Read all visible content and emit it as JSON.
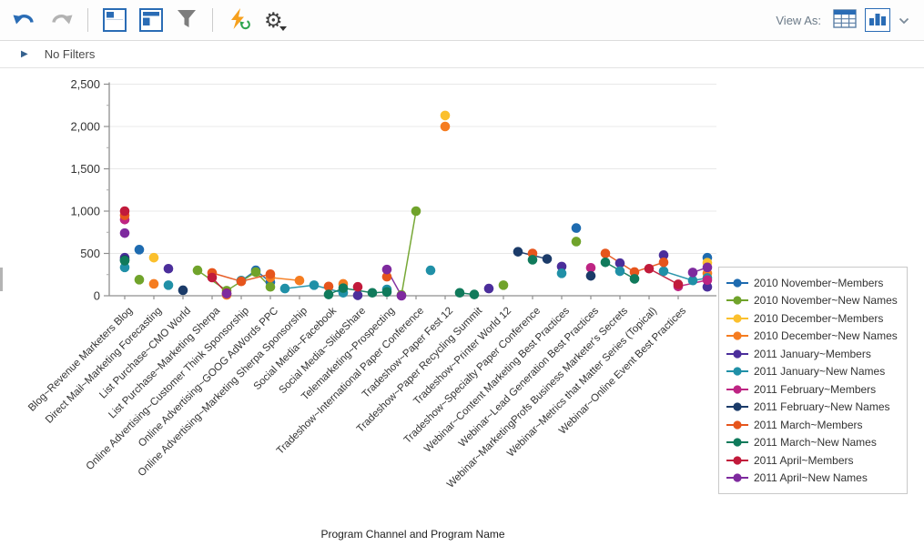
{
  "toolbar": {
    "view_as_label": "View As:",
    "gear_glyph": "⚙",
    "icons": {
      "undo": "undo-arrow",
      "redo": "redo-arrow",
      "layout_left": "panel-layout-left",
      "layout_top": "panel-layout-top",
      "filter": "funnel",
      "refresh": "lightning-refresh",
      "settings": "gear",
      "view_table": "table-grid",
      "view_chart": "bar-chart",
      "view_more": "chevron-down"
    }
  },
  "filter_bar": {
    "expander_glyph": "▶",
    "label": "No Filters"
  },
  "chart_data": {
    "type": "scatter",
    "title": "",
    "xlabel": "Program Channel and Program Name",
    "ylabel": "",
    "ylim": [
      0,
      2500
    ],
    "yticks": [
      0,
      500,
      1000,
      1500,
      2000,
      2500
    ],
    "ytick_labels": [
      "0",
      "500",
      "1,000",
      "1,500",
      "2,000",
      "2,500"
    ],
    "ytick_minor_step": 250,
    "grid": "horizontal",
    "legend_position": "right",
    "slots": 41,
    "categories": [
      {
        "slot": 1,
        "label": "Blog~Revenue Marketers Blog"
      },
      {
        "slot": 3,
        "label": "Direct Mail~Marketing Forecasting"
      },
      {
        "slot": 5,
        "label": "List Purchase~CMO World"
      },
      {
        "slot": 7,
        "label": "List Purchase~Marketing Sherpa"
      },
      {
        "slot": 9,
        "label": "Online Advertising~Customer Think Sponsorship"
      },
      {
        "slot": 11,
        "label": "Online Advertising~GOOG AdWords PPC"
      },
      {
        "slot": 13,
        "label": "Online Advertising~Marketing Sherpa Sponsorship"
      },
      {
        "slot": 15,
        "label": "Social Media~Facebook"
      },
      {
        "slot": 17,
        "label": "Social Media~SlideShare"
      },
      {
        "slot": 19,
        "label": "Telemarketing~Prospecting"
      },
      {
        "slot": 21,
        "label": "Tradeshow~International Paper Conference"
      },
      {
        "slot": 23,
        "label": "Tradeshow~Paper Fest 12"
      },
      {
        "slot": 25,
        "label": "Tradeshow~Paper Recycling Summit"
      },
      {
        "slot": 27,
        "label": "Tradeshow~Printer World 12"
      },
      {
        "slot": 29,
        "label": "Tradeshow~Specialty Paper Conference"
      },
      {
        "slot": 31,
        "label": "Webinar~Content Marketing Best Practices"
      },
      {
        "slot": 33,
        "label": "Webinar~Lead Generation Best Practices"
      },
      {
        "slot": 35,
        "label": "Webinar~MarketingProfs Business Marketer's Secrets"
      },
      {
        "slot": 37,
        "label": "Webinar~Metrics that Matter Series (Topical)"
      },
      {
        "slot": 39,
        "label": "Webinar~Online Event Best Practices"
      }
    ],
    "series": [
      {
        "name": "2010 November~Members",
        "color": "#1E6BB0",
        "points": [
          [
            2,
            545
          ],
          [
            9,
            175
          ],
          [
            10,
            300
          ],
          [
            11,
            160
          ],
          [
            32,
            800
          ],
          [
            41,
            450
          ]
        ]
      },
      {
        "name": "2010 November~New Names",
        "color": "#70A32B",
        "points": [
          [
            2,
            190
          ],
          [
            6,
            300
          ],
          [
            8,
            60
          ],
          [
            10,
            280
          ],
          [
            11,
            105
          ],
          [
            20,
            10
          ],
          [
            21,
            1000
          ],
          [
            27,
            125
          ],
          [
            32,
            640
          ]
        ]
      },
      {
        "name": "2010 December~Members",
        "color": "#FBC02D",
        "points": [
          [
            3,
            450
          ],
          [
            23,
            2130
          ],
          [
            41,
            390
          ]
        ]
      },
      {
        "name": "2010 December~New Names",
        "color": "#F57C20",
        "points": [
          [
            3,
            140
          ],
          [
            8,
            10
          ],
          [
            11,
            215
          ],
          [
            13,
            180
          ],
          [
            16,
            140
          ],
          [
            23,
            2000
          ],
          [
            41,
            265
          ]
        ]
      },
      {
        "name": "2011 January~Members",
        "color": "#4B2E9B",
        "points": [
          [
            1,
            450
          ],
          [
            4,
            320
          ],
          [
            17,
            5
          ],
          [
            26,
            85
          ],
          [
            31,
            345
          ],
          [
            35,
            385
          ],
          [
            38,
            480
          ],
          [
            41,
            105
          ]
        ]
      },
      {
        "name": "2011 January~New Names",
        "color": "#2090A7",
        "points": [
          [
            1,
            335
          ],
          [
            4,
            125
          ],
          [
            9,
            180
          ],
          [
            12,
            85
          ],
          [
            14,
            125
          ],
          [
            16,
            35
          ],
          [
            19,
            75
          ],
          [
            22,
            300
          ],
          [
            31,
            265
          ],
          [
            35,
            290
          ],
          [
            38,
            290
          ],
          [
            40,
            180
          ],
          [
            41,
            210
          ]
        ]
      },
      {
        "name": "2011 February~Members",
        "color": "#BE2483",
        "points": [
          [
            1,
            900
          ],
          [
            33,
            330
          ],
          [
            39,
            110
          ],
          [
            41,
            185
          ]
        ]
      },
      {
        "name": "2011 February~New Names",
        "color": "#1B3B69",
        "points": [
          [
            1,
            425
          ],
          [
            5,
            65
          ],
          [
            28,
            520
          ],
          [
            30,
            435
          ],
          [
            33,
            235
          ]
        ]
      },
      {
        "name": "2011 March~Members",
        "color": "#E6551C",
        "points": [
          [
            1,
            950
          ],
          [
            7,
            270
          ],
          [
            9,
            170
          ],
          [
            11,
            255
          ],
          [
            15,
            110
          ],
          [
            19,
            225
          ],
          [
            29,
            500
          ],
          [
            34,
            500
          ],
          [
            36,
            280
          ],
          [
            38,
            395
          ]
        ]
      },
      {
        "name": "2011 March~New Names",
        "color": "#107A5B",
        "points": [
          [
            1,
            415
          ],
          [
            15,
            15
          ],
          [
            16,
            90
          ],
          [
            18,
            35
          ],
          [
            19,
            45
          ],
          [
            24,
            35
          ],
          [
            25,
            15
          ],
          [
            29,
            425
          ],
          [
            34,
            395
          ],
          [
            36,
            200
          ]
        ]
      },
      {
        "name": "2011 April~Members",
        "color": "#C11A3B",
        "points": [
          [
            1,
            1000
          ],
          [
            7,
            215
          ],
          [
            8,
            30
          ],
          [
            17,
            105
          ],
          [
            37,
            320
          ],
          [
            39,
            135
          ]
        ]
      },
      {
        "name": "2011 April~New Names",
        "color": "#7E2A9E",
        "points": [
          [
            1,
            740
          ],
          [
            8,
            25
          ],
          [
            19,
            310
          ],
          [
            20,
            0
          ],
          [
            40,
            275
          ],
          [
            41,
            335
          ]
        ]
      }
    ]
  }
}
